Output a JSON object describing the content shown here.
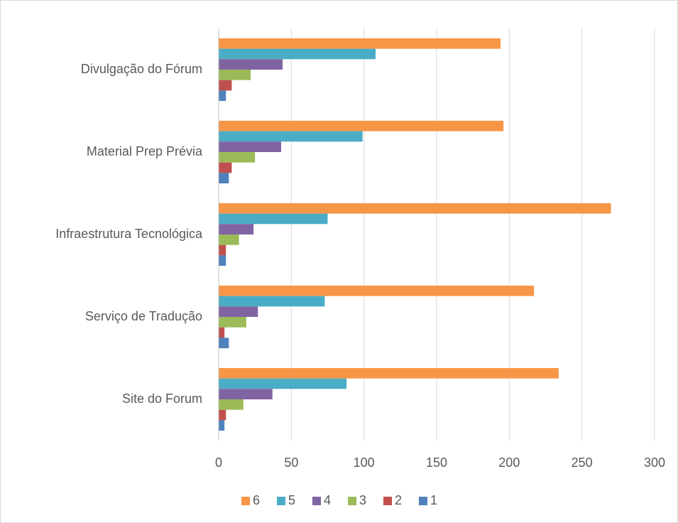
{
  "chart_data": {
    "type": "hbar",
    "categories": [
      "Divulgação do Fórum",
      "Material Prep Prévia",
      "Infraestrutura Tecnológica",
      "Serviço de Tradução",
      "Site do Forum"
    ],
    "series": [
      {
        "name": "6",
        "color": "#f79646",
        "values": [
          194,
          196,
          270,
          217,
          234
        ]
      },
      {
        "name": "5",
        "color": "#4bacc6",
        "values": [
          108,
          99,
          75,
          73,
          88
        ]
      },
      {
        "name": "4",
        "color": "#8064a2",
        "values": [
          44,
          43,
          24,
          27,
          37
        ]
      },
      {
        "name": "3",
        "color": "#9bbb59",
        "values": [
          22,
          25,
          14,
          19,
          17
        ]
      },
      {
        "name": "2",
        "color": "#c0504d",
        "values": [
          9,
          9,
          5,
          4,
          5
        ]
      },
      {
        "name": "1",
        "color": "#4f81bd",
        "values": [
          5,
          7,
          5,
          7,
          4
        ]
      }
    ],
    "xlim": [
      0,
      300
    ],
    "xticks": [
      0,
      50,
      100,
      150,
      200,
      250,
      300
    ],
    "grid": true,
    "legend": "bottom"
  }
}
